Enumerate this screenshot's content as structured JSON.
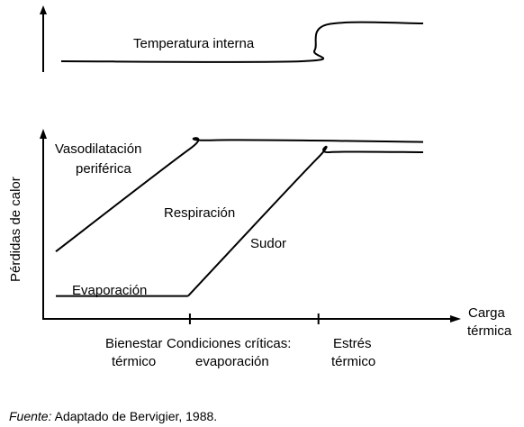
{
  "chart_data": [
    {
      "type": "line",
      "series": [
        {
          "name": "Temperatura interna",
          "points": [
            [
              0.0,
              0.2
            ],
            [
              0.665,
              0.2
            ],
            [
              0.7,
              0.4
            ],
            [
              0.735,
              0.88
            ],
            [
              1.0,
              0.9
            ]
          ]
        }
      ]
    },
    {
      "type": "line",
      "ylabel": "Pérdidas de calor",
      "xlabel": "Carga térmica",
      "series": [
        {
          "name": "Vasodilatación periférica",
          "points": [
            [
              0.0,
              0.32
            ],
            [
              0.365,
              0.92
            ],
            [
              0.42,
              0.97
            ],
            [
              1.0,
              0.96
            ]
          ]
        },
        {
          "name": "Respiración",
          "points": []
        },
        {
          "name": "Evaporación",
          "points": [
            [
              0.0,
              0.06
            ],
            [
              0.36,
              0.06
            ]
          ]
        },
        {
          "name": "Sudor",
          "points": [
            [
              0.36,
              0.06
            ],
            [
              0.71,
              0.86
            ],
            [
              0.745,
              0.9
            ],
            [
              1.0,
              0.9
            ]
          ]
        }
      ],
      "categories": [
        "Bienestar\ntérmico",
        "Condiciones críticas:\nevaporación",
        "Estrés\ntérmico"
      ],
      "tick_positions": [
        0.365,
        0.715
      ]
    }
  ],
  "labels": {
    "temperatura_interna": "Temperatura interna",
    "vasodilatacion_1": "Vasodilatación",
    "vasodilatacion_2": "periférica",
    "respiracion": "Respiración",
    "sudor": "Sudor",
    "evaporacion": "Evaporación",
    "ylabel": "Pérdidas de calor",
    "xlabel_1": "Carga",
    "xlabel_2": "térmica",
    "zone1_1": "Bienestar",
    "zone1_2": "térmico",
    "zone2_1": "Condiciones críticas:",
    "zone2_2": "evaporación",
    "zone3_1": "Estrés",
    "zone3_2": "térmico"
  },
  "source": {
    "prefix": "Fuente:",
    "text": " Adaptado de Bervigier, 1988."
  }
}
